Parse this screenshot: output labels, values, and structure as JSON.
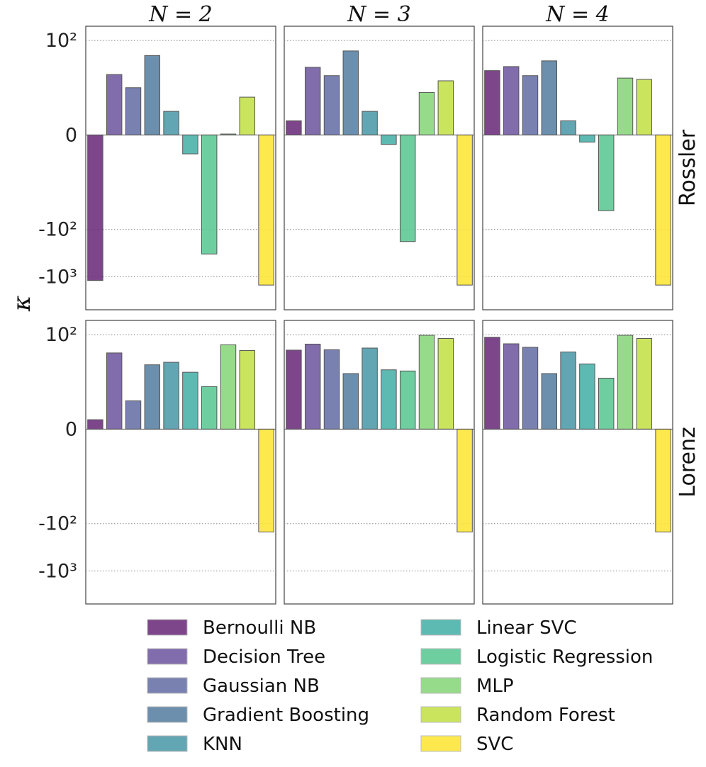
{
  "chart_data": {
    "type": "bar",
    "ylabel": "κ",
    "yscale": "symlog",
    "ylim": [
      -5000,
      200
    ],
    "yticks": [
      {
        "value": 100,
        "label": "10²"
      },
      {
        "value": 0,
        "label": "0"
      },
      {
        "value": -100,
        "label": "-10²"
      },
      {
        "value": -1000,
        "label": "-10³"
      }
    ],
    "grid": "horizontal dotted",
    "columns": [
      "N = 2",
      "N = 3",
      "N = 4"
    ],
    "rows": [
      "Rossler",
      "Lorenz"
    ],
    "categories": [
      "Bernoulli NB",
      "Decision Tree",
      "Gaussian NB",
      "Gradient Boosting",
      "KNN",
      "Linear SVC",
      "Logistic Regression",
      "MLP",
      "Random Forest",
      "SVC"
    ],
    "colors": [
      "#6b2c7a",
      "#6f58a0",
      "#6670a6",
      "#577fa0",
      "#4d9aa8",
      "#47b0a8",
      "#5bc793",
      "#87d67a",
      "#c3e048",
      "#fde535"
    ],
    "panels": [
      {
        "row": "Rossler",
        "column": "N = 2",
        "values": [
          -1200,
          19,
          10,
          48,
          5,
          -4,
          -330,
          0.2,
          8,
          -1500
        ]
      },
      {
        "row": "Rossler",
        "column": "N = 3",
        "values": [
          3,
          27,
          18,
          60,
          5,
          -2,
          -180,
          9,
          14,
          -1500
        ]
      },
      {
        "row": "Rossler",
        "column": "N = 4",
        "values": [
          23,
          28,
          18,
          37,
          3,
          -1.5,
          -40,
          16,
          15,
          -1500
        ]
      },
      {
        "row": "Lorenz",
        "column": "N = 2",
        "values": [
          2,
          41,
          6,
          23,
          26,
          16,
          9,
          61,
          46,
          -150
        ]
      },
      {
        "row": "Lorenz",
        "column": "N = 3",
        "values": [
          47,
          63,
          48,
          15,
          52,
          18,
          17,
          97,
          83,
          -150
        ]
      },
      {
        "row": "Lorenz",
        "column": "N = 4",
        "values": [
          88,
          64,
          54,
          15,
          43,
          24,
          12,
          97,
          83,
          -150
        ]
      }
    ],
    "legend": {
      "position": "bottom",
      "ncols": 2
    }
  }
}
